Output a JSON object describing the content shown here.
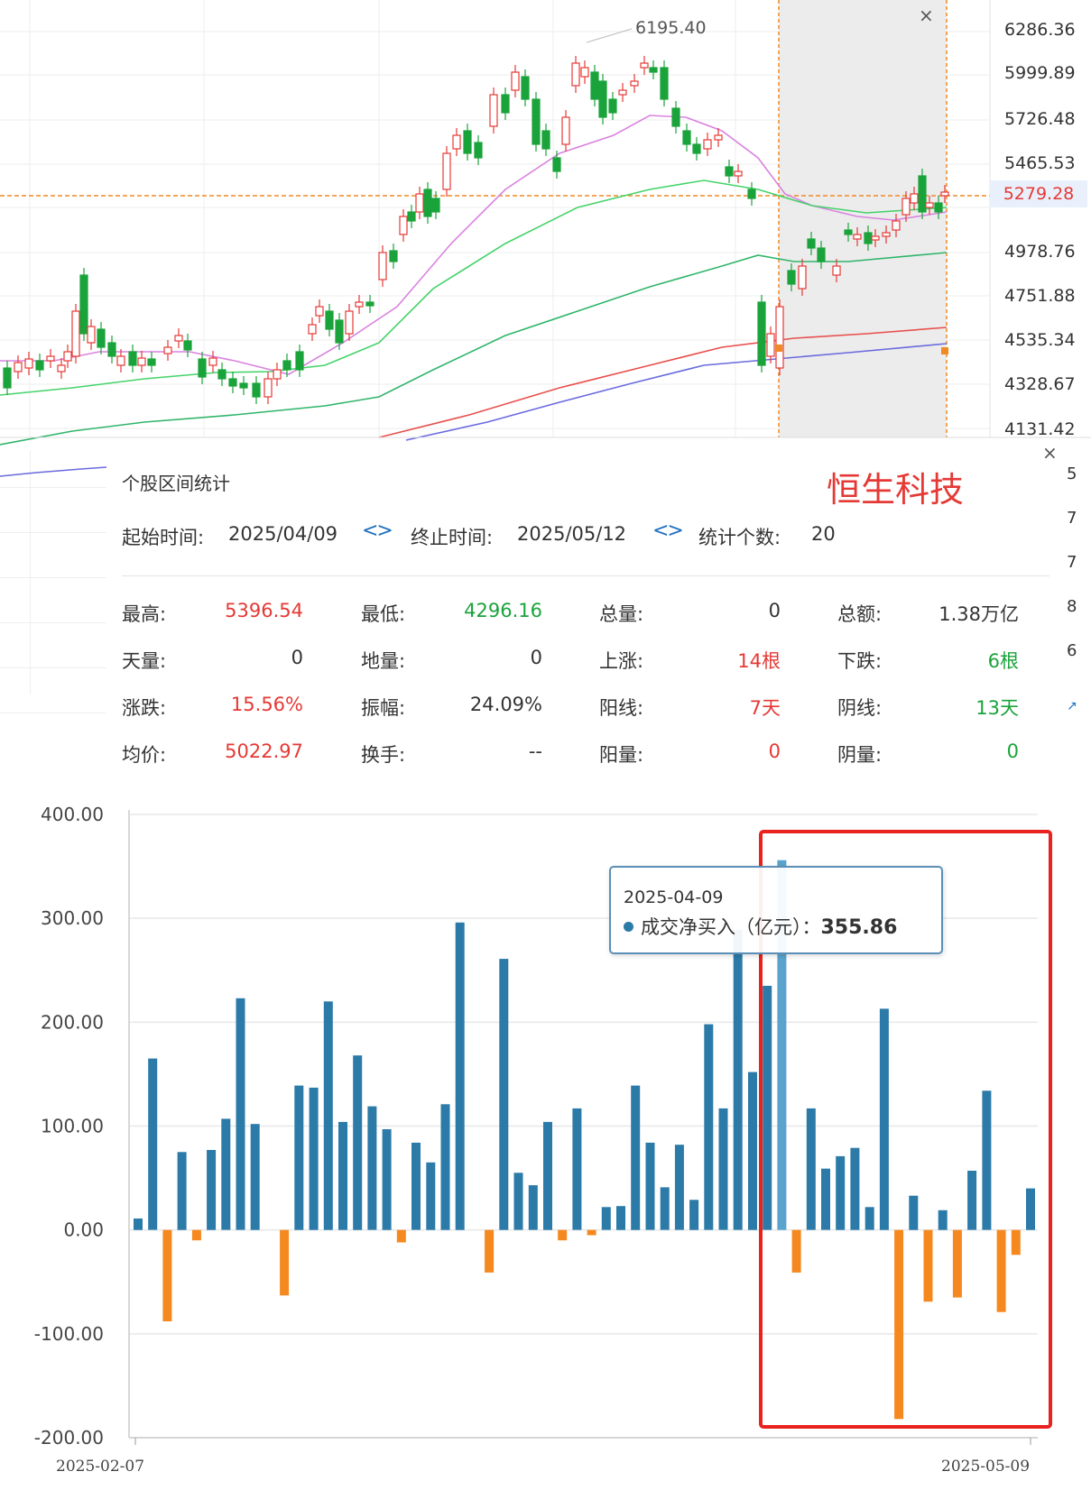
{
  "kline": {
    "high_marker": "6195.40",
    "price_axis": [
      "6286.36",
      "5999.89",
      "5726.48",
      "5465.53",
      "5279.28",
      "4978.76",
      "4751.88",
      "4535.34",
      "4328.67",
      "4131.42"
    ],
    "current_price": "5279.28",
    "right_edge_digits": [
      "5",
      "7",
      "7",
      "8",
      "6"
    ],
    "colors": {
      "up": "#e53935",
      "down": "#1aa33a",
      "highlight": "#f2f2f2",
      "crosshair": "#f08a24"
    }
  },
  "stats": {
    "title": "个股区间统计",
    "index_name": "恒生科技",
    "start_label": "起始时间:",
    "start_value": "2025/04/09",
    "end_label": "终止时间:",
    "end_value": "2025/05/12",
    "count_label": "统计个数:",
    "count_value": "20",
    "rows": [
      [
        {
          "label": "最高:",
          "value": "5396.54"
        },
        {
          "label": "最低:",
          "value": "4296.16"
        },
        {
          "label": "总量:",
          "value": "0"
        },
        {
          "label": "总额:",
          "value": "1.38万亿"
        }
      ],
      [
        {
          "label": "天量:",
          "value": "0"
        },
        {
          "label": "地量:",
          "value": "0"
        },
        {
          "label": "上涨:",
          "value": "14根"
        },
        {
          "label": "下跌:",
          "value": "6根"
        }
      ],
      [
        {
          "label": "涨跌:",
          "value": "15.56%"
        },
        {
          "label": "振幅:",
          "value": "24.09%"
        },
        {
          "label": "阳线:",
          "value": "7天"
        },
        {
          "label": "阴线:",
          "value": "13天"
        }
      ],
      [
        {
          "label": "均价:",
          "value": "5022.97"
        },
        {
          "label": "换手:",
          "value": "--"
        },
        {
          "label": "阳量:",
          "value": "0"
        },
        {
          "label": "阴量:",
          "value": "0"
        }
      ]
    ]
  },
  "tooltip": {
    "date": "2025-04-09",
    "series": "成交净买入（亿元）：",
    "value": "355.86"
  },
  "chart_data": {
    "type": "bar",
    "yticks": [
      "400.00",
      "300.00",
      "200.00",
      "100.00",
      "0.00",
      "-100.00",
      "-200.00"
    ],
    "ylim": [
      -200,
      400
    ],
    "x_first": "2025-02-07",
    "x_last": "2025-05-09",
    "series": [
      {
        "values": [
          11,
          165,
          -88,
          75,
          -10,
          77,
          107,
          223,
          102,
          0,
          -63,
          139,
          137,
          220,
          104,
          168,
          119,
          97,
          -12,
          84,
          65,
          121,
          296,
          0,
          -41,
          261,
          55,
          43,
          104,
          -10,
          117,
          -5,
          22,
          23,
          139,
          84,
          41,
          82,
          29,
          198,
          117,
          289,
          152,
          235,
          356,
          -41,
          117,
          59,
          71,
          79,
          22,
          213,
          -182,
          33,
          -69,
          19,
          -65,
          57,
          134,
          -79,
          -24,
          40
        ]
      }
    ],
    "colors": {
      "positive": "#2b7aa8",
      "negative": "#f5891f",
      "box": "#e8231f"
    }
  }
}
